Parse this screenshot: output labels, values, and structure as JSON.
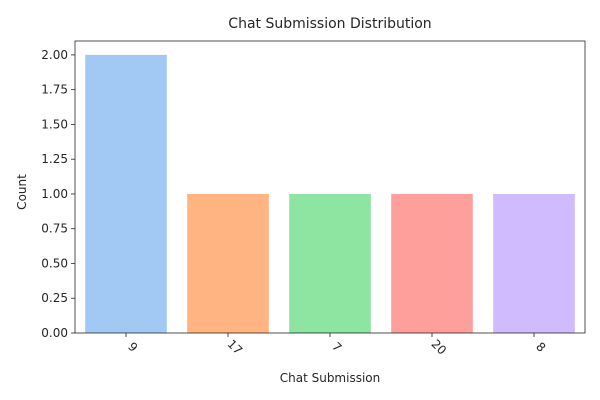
{
  "chart_data": {
    "type": "bar",
    "title": "Chat Submission Distribution",
    "xlabel": "Chat Submission",
    "ylabel": "Count",
    "categories": [
      "9",
      "17",
      "7",
      "20",
      "8"
    ],
    "values": [
      2,
      1,
      1,
      1,
      1
    ],
    "colors": [
      "#a1c9f4",
      "#ffb482",
      "#8de5a1",
      "#ff9f9b",
      "#d0bbff"
    ],
    "ylim": [
      0,
      2.1
    ],
    "yticks": [
      "0.00",
      "0.25",
      "0.50",
      "0.75",
      "1.00",
      "1.25",
      "1.50",
      "1.75",
      "2.00"
    ],
    "grid": false,
    "xtick_rotation": 45
  }
}
